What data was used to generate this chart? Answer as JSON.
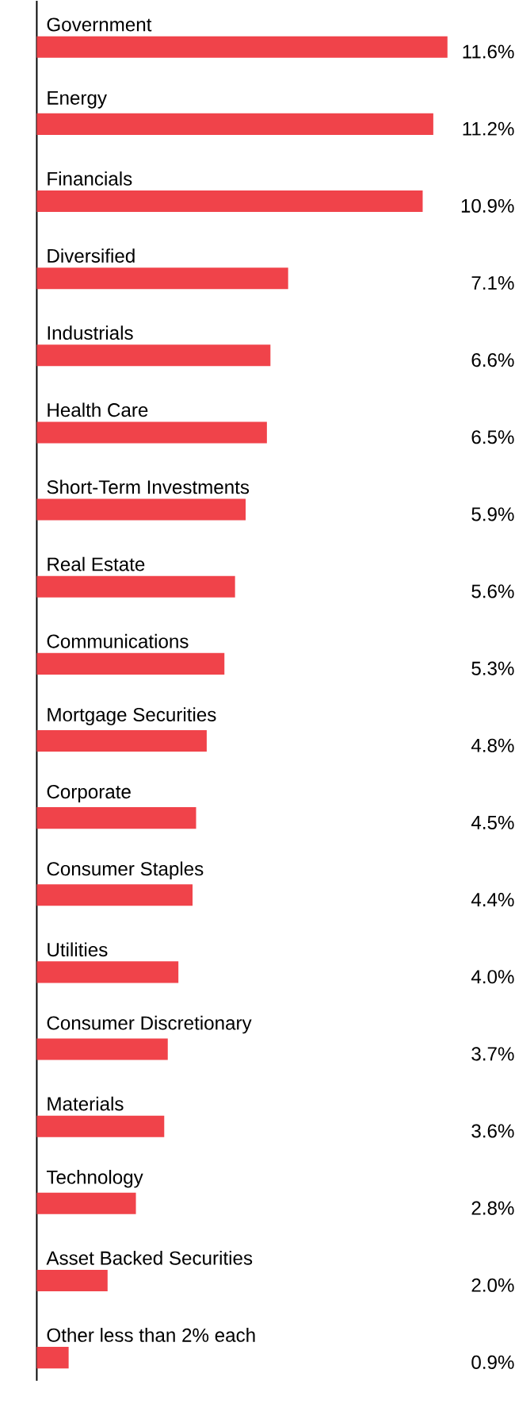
{
  "chart_data": {
    "type": "bar",
    "orientation": "horizontal",
    "color": "#f0434a",
    "categories": [
      "Government",
      "Energy",
      "Financials",
      "Diversified",
      "Industrials",
      "Health Care",
      "Short-Term Investments",
      "Real Estate",
      "Communications",
      "Mortgage Securities",
      "Corporate",
      "Consumer Staples",
      "Utilities",
      "Consumer Discretionary",
      "Materials",
      "Technology",
      "Asset Backed Securities",
      "Other less than 2% each"
    ],
    "values": [
      11.6,
      11.2,
      10.9,
      7.1,
      6.6,
      6.5,
      5.9,
      5.6,
      5.3,
      4.8,
      4.5,
      4.4,
      4.0,
      3.7,
      3.6,
      2.8,
      2.0,
      0.9
    ],
    "value_labels": [
      "11.6%",
      "11.2%",
      "10.9%",
      "7.1%",
      "6.6%",
      "6.5%",
      "5.9%",
      "5.6%",
      "5.3%",
      "4.8%",
      "4.5%",
      "4.4%",
      "4.0%",
      "3.7%",
      "3.6%",
      "2.8%",
      "2.0%",
      "0.9%"
    ]
  }
}
